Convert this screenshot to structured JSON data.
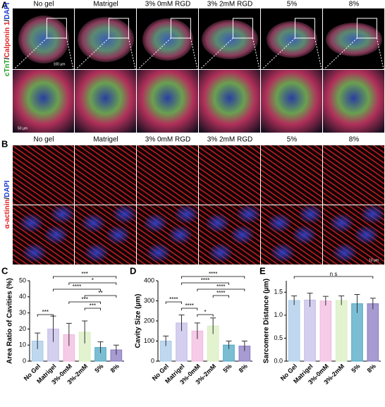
{
  "panel_labels": [
    "A",
    "B",
    "C",
    "D",
    "E"
  ],
  "panel_a": {
    "columns": [
      "No gel",
      "Matrigel",
      "3% 0mM RGD",
      "3% 2mM RGD",
      "5%",
      "8%"
    ],
    "row_label_parts": [
      "cTnT",
      "/",
      "Calponin 1",
      "/",
      "DAPI"
    ],
    "scale_top": "100 µm",
    "scale_bottom": "50 µm"
  },
  "panel_b": {
    "columns": [
      "No gel",
      "Matrigel",
      "3% 0mM RGD",
      "3% 2mM RGD",
      "5%",
      "8%"
    ],
    "row_label_parts": [
      "α-actinin",
      "/",
      "DAPI"
    ],
    "scale": "10 µm"
  },
  "chart_data": [
    {
      "type": "bar",
      "y_label": "Area Ratio of Cavities (%)",
      "categories": [
        "No Gel",
        "Matrigel",
        "3%-0mM",
        "3%-2mM",
        "5%",
        "8%"
      ],
      "values": [
        12.5,
        20,
        16.5,
        18,
        8.5,
        7
      ],
      "errors": [
        5,
        8,
        7,
        7,
        3.5,
        3
      ],
      "colors": [
        "#a9cbe9",
        "#c6bde9",
        "#f1badf",
        "#d9efc0",
        "#4fa8c6",
        "#8a79c2"
      ],
      "ylim": [
        0,
        50
      ],
      "yticks": [
        0,
        10,
        20,
        30,
        40,
        50
      ],
      "significance": [
        {
          "from": "Matrigel",
          "to": "8%",
          "label": "***"
        },
        {
          "from": "3%-0mM",
          "to": "8%",
          "label": "*"
        },
        {
          "from": "Matrigel",
          "to": "5%",
          "label": "****"
        },
        {
          "from": "3%-2mM",
          "to": "8%",
          "label": "**"
        },
        {
          "from": "3%-0mM",
          "to": "5%",
          "label": "***"
        },
        {
          "from": "3%-2mM",
          "to": "5%",
          "label": "***"
        },
        {
          "from": "No Gel",
          "to": "Matrigel",
          "label": "***"
        }
      ]
    },
    {
      "type": "bar",
      "y_label": "Cavity Size (µm)",
      "categories": [
        "No Gel",
        "Matrigel",
        "3%-0mM",
        "3%-2mM",
        "5%",
        "8%"
      ],
      "values": [
        100,
        190,
        150,
        175,
        80,
        75
      ],
      "errors": [
        25,
        40,
        40,
        40,
        20,
        25
      ],
      "colors": [
        "#a9cbe9",
        "#c6bde9",
        "#f1badf",
        "#d9efc0",
        "#4fa8c6",
        "#8a79c2"
      ],
      "ylim": [
        0,
        400
      ],
      "yticks": [
        0,
        100,
        200,
        300,
        400
      ],
      "significance": [
        {
          "from": "Matrigel",
          "to": "8%",
          "label": "****"
        },
        {
          "from": "Matrigel",
          "to": "5%",
          "label": "****"
        },
        {
          "from": "3%-0mM",
          "to": "8%",
          "label": "****"
        },
        {
          "from": "3%-2mM",
          "to": "5%",
          "label": "****"
        },
        {
          "from": "No Gel",
          "to": "Matrigel",
          "label": "****"
        },
        {
          "from": "Matrigel",
          "to": "3%-0mM",
          "label": "****"
        },
        {
          "from": "3%-0mM",
          "to": "3%-2mM",
          "label": "*"
        }
      ]
    },
    {
      "type": "bar",
      "y_label": "Sarcomere Distance (µm)",
      "categories": [
        "No Gel",
        "Matrigel",
        "3%-0mM",
        "3%-2mM",
        "5%",
        "8%"
      ],
      "values": [
        1.32,
        1.33,
        1.31,
        1.32,
        1.25,
        1.25
      ],
      "errors": [
        0.1,
        0.15,
        0.1,
        0.1,
        0.2,
        0.12
      ],
      "colors": [
        "#a9cbe9",
        "#c6bde9",
        "#f1badf",
        "#d9efc0",
        "#4fa8c6",
        "#8a79c2"
      ],
      "ylim": [
        0,
        1.75
      ],
      "yticks": [
        {
          "value": 0,
          "label": "0.0"
        },
        {
          "value": 0.5,
          "label": "0.5"
        },
        {
          "value": 1,
          "label": "1.0"
        },
        {
          "value": 1.5,
          "label": "1.5"
        }
      ],
      "significance": [
        {
          "from": "No Gel",
          "to": "8%",
          "label": "n s"
        }
      ]
    }
  ]
}
